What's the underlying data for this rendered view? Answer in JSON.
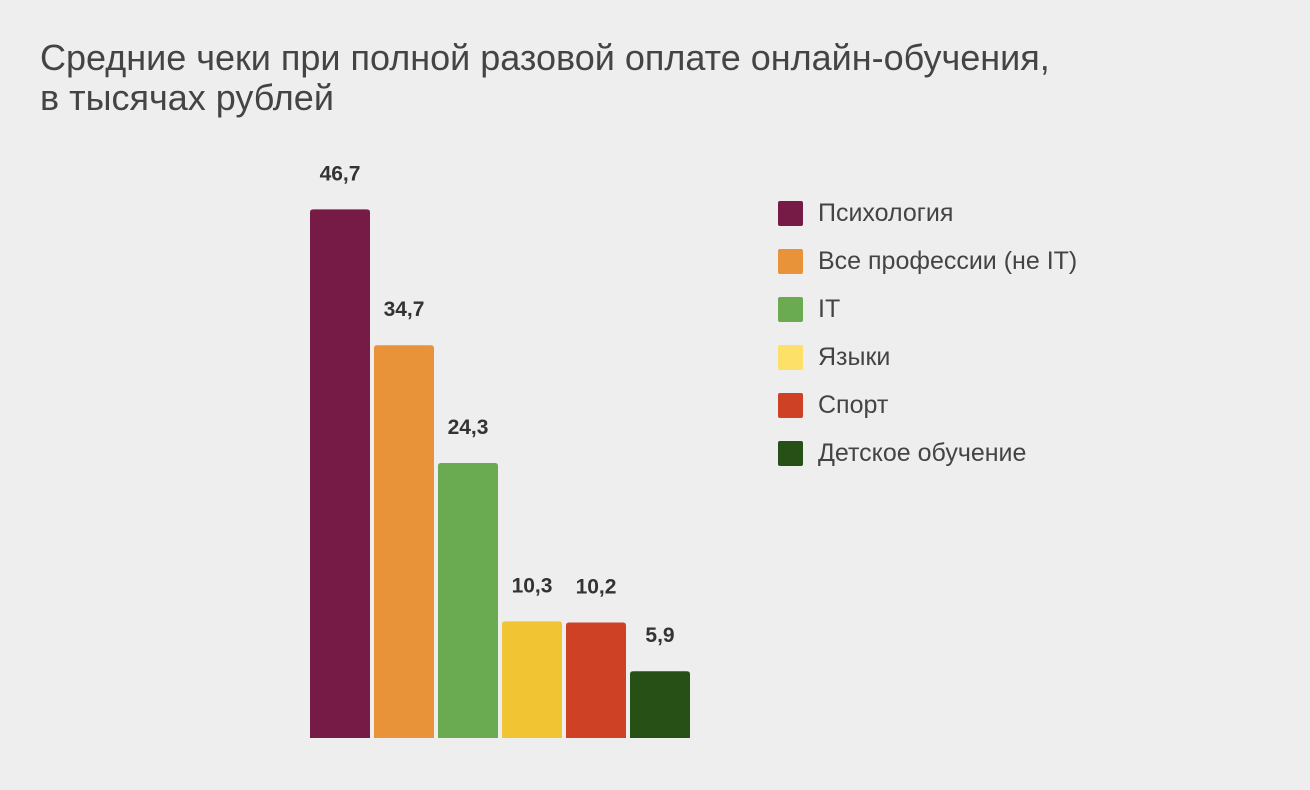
{
  "chart_data": {
    "type": "bar",
    "title": "Средние чеки при полной разовой оплате онлайн-обучения,",
    "subtitle": "в тысячах рублей",
    "categories": [
      "Психология",
      "Все профессии (не IT)",
      "IT",
      "Языки",
      "Спорт",
      "Детское обучение"
    ],
    "values": [
      46.7,
      34.7,
      24.3,
      10.3,
      10.2,
      5.9
    ],
    "value_labels": [
      "46,7",
      "34,7",
      "24,3",
      "10,3",
      "10,2",
      "5,9"
    ],
    "colors": [
      "#751b45",
      "#e8923a",
      "#6aaa50",
      "#f0c433",
      "#cf4125",
      "#275017"
    ],
    "legend_colors": [
      "#751b45",
      "#e8923a",
      "#6aaa50",
      "#fde068",
      "#cf4125",
      "#275017"
    ],
    "xlabel": "",
    "ylabel": "",
    "ylim": [
      0,
      47
    ],
    "grid": false,
    "legend_position": "right"
  }
}
